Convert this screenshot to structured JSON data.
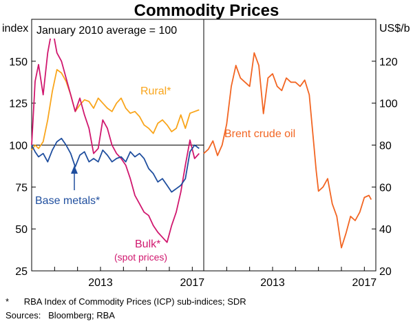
{
  "chart_data": {
    "type": "line",
    "title": "Commodity Prices",
    "annotation": "January 2010 average = 100",
    "left_panel": {
      "ylabel": "index",
      "yticks": [
        25,
        50,
        75,
        100,
        125,
        150
      ],
      "ylim": [
        25,
        175
      ],
      "xlim": [
        2010.0,
        2017.5
      ],
      "xticks": [
        2013,
        2017
      ],
      "reference_line": 100,
      "series": [
        {
          "name": "Rural*",
          "color": "#F9A51B",
          "x": [
            2010.0,
            2010.15,
            2010.3,
            2010.5,
            2010.7,
            2010.9,
            2011.1,
            2011.3,
            2011.5,
            2011.7,
            2011.9,
            2012.1,
            2012.3,
            2012.5,
            2012.7,
            2012.9,
            2013.1,
            2013.3,
            2013.5,
            2013.7,
            2013.9,
            2014.1,
            2014.3,
            2014.5,
            2014.7,
            2014.9,
            2015.1,
            2015.3,
            2015.5,
            2015.7,
            2015.9,
            2016.1,
            2016.3,
            2016.5,
            2016.7,
            2016.9,
            2017.1,
            2017.3
          ],
          "values": [
            97,
            100,
            98,
            102,
            115,
            132,
            145,
            143,
            138,
            130,
            120,
            124,
            127,
            126,
            122,
            128,
            125,
            122,
            120,
            125,
            128,
            122,
            119,
            120,
            117,
            112,
            110,
            107,
            113,
            115,
            112,
            108,
            110,
            118,
            110,
            119,
            120,
            121
          ]
        },
        {
          "name": "Base metals*",
          "color": "#1F4E9E",
          "x": [
            2010.0,
            2010.15,
            2010.3,
            2010.5,
            2010.7,
            2010.9,
            2011.1,
            2011.3,
            2011.5,
            2011.7,
            2011.9,
            2012.1,
            2012.3,
            2012.5,
            2012.7,
            2012.9,
            2013.1,
            2013.3,
            2013.5,
            2013.7,
            2013.9,
            2014.1,
            2014.3,
            2014.5,
            2014.7,
            2014.9,
            2015.1,
            2015.3,
            2015.5,
            2015.7,
            2015.9,
            2016.1,
            2016.3,
            2016.5,
            2016.7,
            2016.9,
            2017.1,
            2017.3
          ],
          "values": [
            100,
            96,
            93,
            95,
            90,
            97,
            102,
            104,
            100,
            95,
            87,
            94,
            96,
            90,
            92,
            90,
            97,
            94,
            90,
            92,
            93,
            90,
            96,
            93,
            95,
            92,
            86,
            83,
            78,
            80,
            76,
            72,
            74,
            76,
            80,
            96,
            100,
            98
          ]
        },
        {
          "name": "Bulk*",
          "label_sub": "(spot prices)",
          "color": "#D0176E",
          "x": [
            2010.0,
            2010.15,
            2010.3,
            2010.5,
            2010.7,
            2010.9,
            2011.1,
            2011.3,
            2011.5,
            2011.7,
            2011.9,
            2012.1,
            2012.3,
            2012.5,
            2012.7,
            2012.9,
            2013.1,
            2013.3,
            2013.5,
            2013.7,
            2013.9,
            2014.1,
            2014.3,
            2014.5,
            2014.7,
            2014.9,
            2015.1,
            2015.3,
            2015.5,
            2015.7,
            2015.9,
            2016.1,
            2016.3,
            2016.5,
            2016.7,
            2016.9,
            2017.1,
            2017.3
          ],
          "values": [
            100,
            138,
            148,
            130,
            155,
            170,
            155,
            150,
            140,
            130,
            120,
            128,
            118,
            110,
            95,
            98,
            115,
            110,
            100,
            95,
            92,
            88,
            80,
            70,
            65,
            60,
            58,
            52,
            48,
            45,
            42,
            52,
            60,
            72,
            88,
            103,
            92,
            95
          ]
        }
      ],
      "labels": [
        "Rural*",
        "Base metals*",
        "Bulk*",
        "(spot prices)"
      ]
    },
    "right_panel": {
      "ylabel": "US$/b",
      "yticks": [
        20,
        40,
        60,
        80,
        100,
        120
      ],
      "ylim": [
        20,
        140
      ],
      "xlim": [
        2010.0,
        2017.5
      ],
      "xticks": [
        2013,
        2017
      ],
      "series": [
        {
          "name": "Brent crude oil",
          "color": "#F26522",
          "x": [
            2010.0,
            2010.2,
            2010.4,
            2010.6,
            2010.8,
            2011.0,
            2011.2,
            2011.4,
            2011.6,
            2011.8,
            2012.0,
            2012.2,
            2012.4,
            2012.6,
            2012.8,
            2013.0,
            2013.2,
            2013.4,
            2013.6,
            2013.8,
            2014.0,
            2014.2,
            2014.4,
            2014.6,
            2014.8,
            2014.9,
            2015.0,
            2015.2,
            2015.4,
            2015.6,
            2015.8,
            2016.0,
            2016.2,
            2016.4,
            2016.6,
            2016.8,
            2017.0,
            2017.2,
            2017.3
          ],
          "values": [
            76,
            78,
            82,
            75,
            80,
            90,
            108,
            118,
            112,
            110,
            108,
            124,
            118,
            95,
            112,
            114,
            108,
            106,
            112,
            110,
            110,
            108,
            111,
            104,
            80,
            68,
            58,
            60,
            64,
            52,
            46,
            31,
            38,
            46,
            44,
            48,
            55,
            56,
            54
          ]
        }
      ],
      "labels": [
        "Brent crude oil"
      ]
    }
  },
  "footnotes": [
    "*      RBA Index of Commodity Prices (ICP) sub-indices; SDR",
    "Sources:   Bloomberg; RBA"
  ]
}
